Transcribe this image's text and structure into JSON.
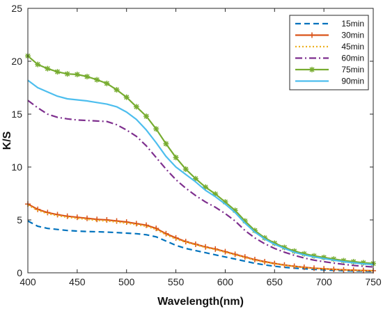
{
  "chart_data": {
    "type": "line",
    "title": "",
    "xlabel": "Wavelength(nm)",
    "ylabel": "K/S",
    "xlim": [
      400,
      750
    ],
    "ylim": [
      0,
      25
    ],
    "xticks": [
      400,
      450,
      500,
      550,
      600,
      650,
      700,
      750
    ],
    "yticks": [
      0,
      5,
      10,
      15,
      20,
      25
    ],
    "grid": false,
    "legend_position": "top-right",
    "x": [
      400,
      410,
      420,
      430,
      440,
      450,
      460,
      470,
      480,
      490,
      500,
      510,
      520,
      530,
      540,
      550,
      560,
      570,
      580,
      590,
      600,
      610,
      620,
      630,
      640,
      650,
      660,
      670,
      680,
      690,
      700,
      710,
      720,
      730,
      740,
      750
    ],
    "series": [
      {
        "name": "15min",
        "color": "#0072BD",
        "dash": "8,5",
        "marker": "none",
        "values": [
          4.9,
          4.4,
          4.2,
          4.1,
          4.0,
          3.95,
          3.9,
          3.88,
          3.85,
          3.8,
          3.75,
          3.7,
          3.6,
          3.4,
          3.0,
          2.6,
          2.3,
          2.1,
          1.9,
          1.7,
          1.5,
          1.3,
          1.1,
          0.9,
          0.75,
          0.62,
          0.52,
          0.44,
          0.38,
          0.32,
          0.28,
          0.24,
          0.2,
          0.18,
          0.16,
          0.14
        ]
      },
      {
        "name": "30min",
        "color": "#D95319",
        "dash": "",
        "marker": "plus",
        "values": [
          6.5,
          6.0,
          5.7,
          5.5,
          5.35,
          5.25,
          5.15,
          5.05,
          5.0,
          4.9,
          4.8,
          4.65,
          4.5,
          4.2,
          3.7,
          3.3,
          2.95,
          2.7,
          2.45,
          2.25,
          2.0,
          1.75,
          1.5,
          1.25,
          1.05,
          0.88,
          0.74,
          0.62,
          0.52,
          0.44,
          0.38,
          0.33,
          0.28,
          0.25,
          0.22,
          0.2
        ]
      },
      {
        "name": "45min",
        "color": "#EDB120",
        "dash": "2,3",
        "marker": "none",
        "values": [
          6.4,
          5.9,
          5.6,
          5.4,
          5.25,
          5.15,
          5.05,
          4.95,
          4.9,
          4.8,
          4.7,
          4.55,
          4.4,
          4.1,
          3.6,
          3.2,
          2.9,
          2.65,
          2.4,
          2.2,
          1.95,
          1.7,
          1.45,
          1.2,
          1.0,
          0.85,
          0.72,
          0.6,
          0.5,
          0.43,
          0.37,
          0.32,
          0.27,
          0.24,
          0.21,
          0.19
        ]
      },
      {
        "name": "60min",
        "color": "#7E2F8E",
        "dash": "10,4,2,4",
        "marker": "none",
        "values": [
          16.3,
          15.6,
          15.0,
          14.7,
          14.55,
          14.45,
          14.4,
          14.35,
          14.3,
          14.0,
          13.5,
          12.9,
          12.0,
          10.9,
          9.8,
          8.8,
          8.0,
          7.3,
          6.7,
          6.2,
          5.6,
          4.9,
          4.0,
          3.3,
          2.75,
          2.3,
          1.95,
          1.65,
          1.4,
          1.2,
          1.05,
          0.92,
          0.8,
          0.7,
          0.62,
          0.55
        ]
      },
      {
        "name": "75min",
        "color": "#77AC30",
        "dash": "",
        "marker": "star",
        "values": [
          20.5,
          19.7,
          19.3,
          19.0,
          18.8,
          18.75,
          18.55,
          18.25,
          17.9,
          17.3,
          16.6,
          15.7,
          14.8,
          13.6,
          12.2,
          10.9,
          9.8,
          8.9,
          8.1,
          7.45,
          6.7,
          5.9,
          4.9,
          4.0,
          3.3,
          2.8,
          2.4,
          2.05,
          1.8,
          1.6,
          1.45,
          1.3,
          1.15,
          1.05,
          0.95,
          0.88
        ]
      },
      {
        "name": "90min",
        "color": "#4DBEEE",
        "dash": "",
        "marker": "none",
        "values": [
          18.2,
          17.5,
          17.1,
          16.7,
          16.45,
          16.35,
          16.25,
          16.1,
          15.95,
          15.7,
          15.2,
          14.5,
          13.5,
          12.3,
          11.0,
          10.0,
          9.3,
          8.6,
          7.8,
          7.2,
          6.5,
          5.7,
          4.7,
          3.85,
          3.2,
          2.7,
          2.3,
          1.95,
          1.7,
          1.5,
          1.35,
          1.2,
          1.05,
          0.95,
          0.85,
          0.78
        ]
      }
    ]
  }
}
